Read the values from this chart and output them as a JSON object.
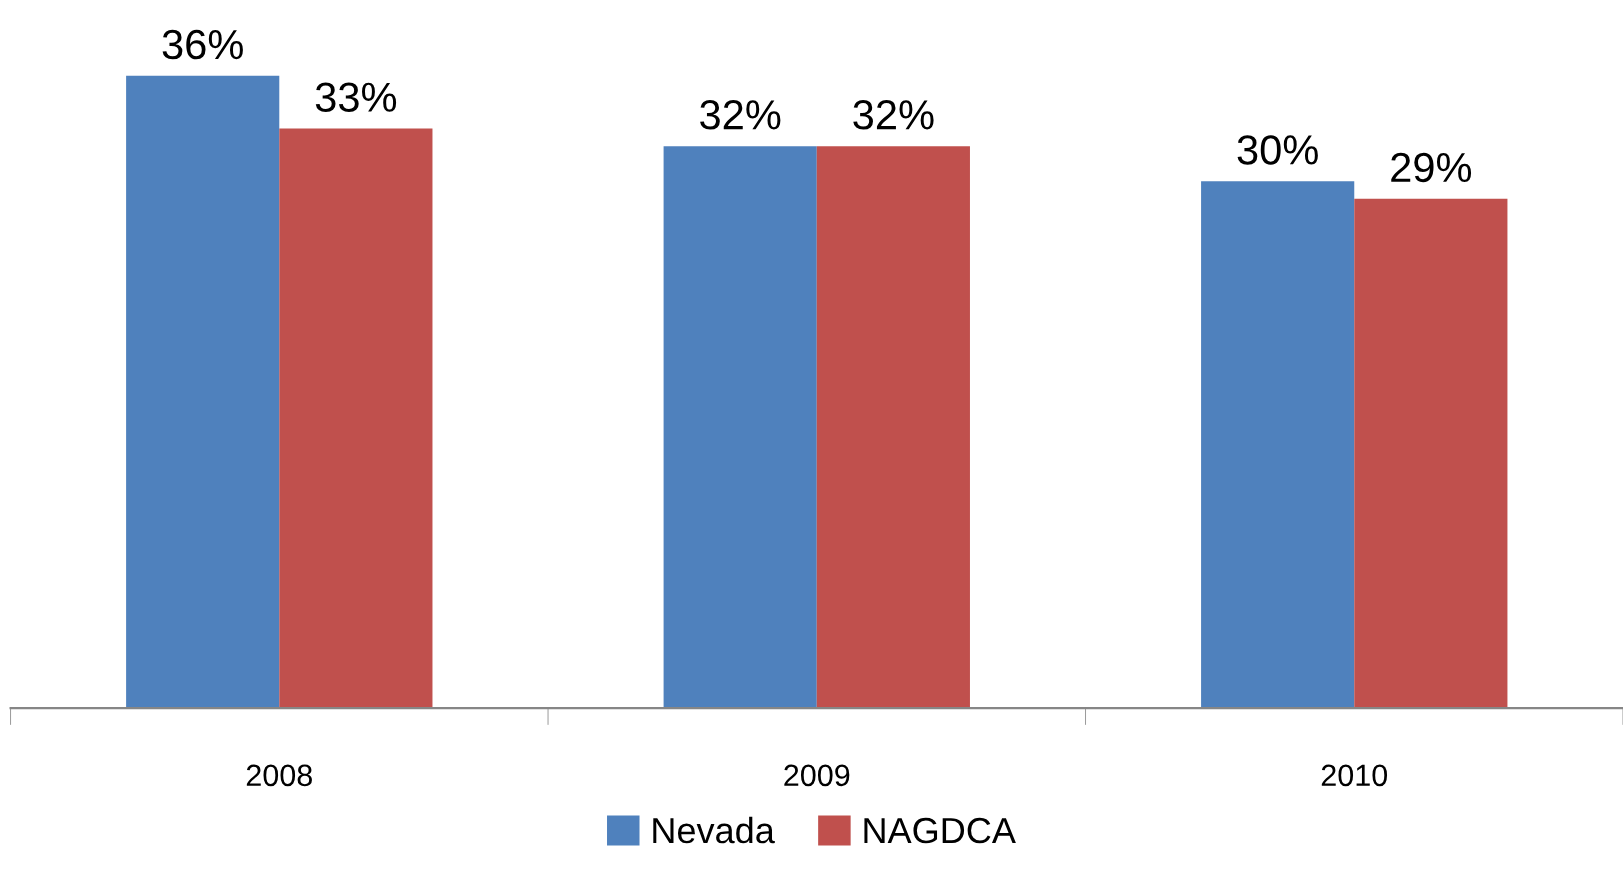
{
  "chart_data": {
    "type": "bar",
    "categories": [
      "2008",
      "2009",
      "2010"
    ],
    "series": [
      {
        "name": "Nevada",
        "color": "#4f81bd",
        "values": [
          36,
          32,
          30
        ],
        "value_labels": [
          "36%",
          "32%",
          "30%"
        ]
      },
      {
        "name": "NAGDCA",
        "color": "#c0504d",
        "values": [
          33,
          32,
          29
        ],
        "value_labels": [
          "33%",
          "32%",
          "29%"
        ]
      }
    ],
    "legend": "bottom",
    "grid": false
  }
}
